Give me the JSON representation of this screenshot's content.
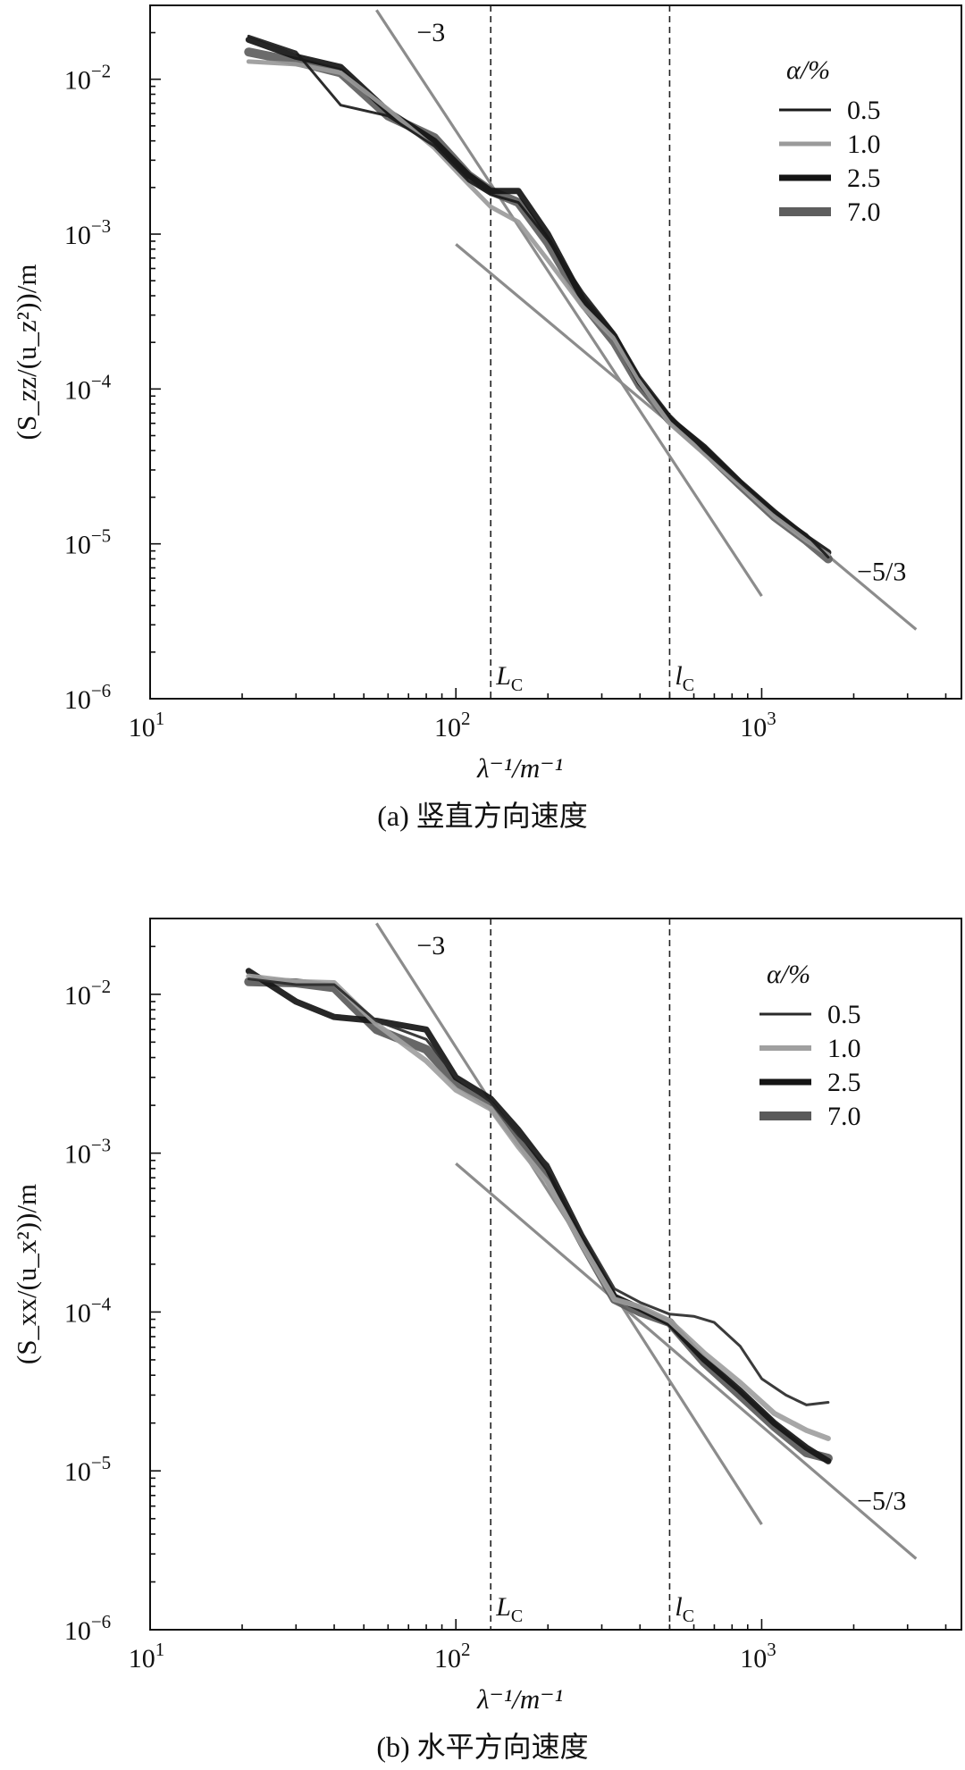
{
  "chart_data": [
    {
      "type": "line",
      "caption": "(a) 竖直方向速度",
      "ylabel": "(S_zz/(u_z²))/m",
      "xlabel": "λ⁻¹/m⁻¹",
      "x_scale": "log",
      "y_scale": "log",
      "xlim": [
        10,
        4500
      ],
      "ylim": [
        1e-06,
        0.03
      ],
      "x_ticks": [
        {
          "base": "10",
          "exp": "1"
        },
        {
          "base": "10",
          "exp": "2"
        },
        {
          "base": "10",
          "exp": "3"
        }
      ],
      "y_ticks": [
        {
          "base": "10",
          "exp": "−6"
        },
        {
          "base": "10",
          "exp": "−5"
        },
        {
          "base": "10",
          "exp": "−4"
        },
        {
          "base": "10",
          "exp": "−3"
        },
        {
          "base": "10",
          "exp": "−2"
        }
      ],
      "legend_title": "α/%",
      "legend_position": "top-right",
      "vlines": [
        {
          "x": 130,
          "label": "L",
          "sub": "C"
        },
        {
          "x": 500,
          "label": "l",
          "sub": "C"
        }
      ],
      "reference_lines": [
        {
          "label": "−3",
          "slope": -3,
          "points": [
            [
              55,
              0.028
            ],
            [
              1000,
              4.6e-06
            ]
          ],
          "color": "#8c8c8c"
        },
        {
          "label": "−5/3",
          "slope": -1.667,
          "points": [
            [
              100,
              0.00086
            ],
            [
              3200,
              2.8e-06
            ]
          ],
          "color": "#8c8c8c"
        }
      ],
      "series": [
        {
          "name": "0.5",
          "color": "#1a1a1a",
          "width": 3,
          "points": [
            [
              21,
              0.019
            ],
            [
              30,
              0.015
            ],
            [
              42,
              0.0068
            ],
            [
              60,
              0.0058
            ],
            [
              85,
              0.0037
            ],
            [
              110,
              0.0022
            ],
            [
              130,
              0.0018
            ],
            [
              160,
              0.0016
            ],
            [
              200,
              0.00092
            ],
            [
              260,
              0.00042
            ],
            [
              330,
              0.00023
            ],
            [
              400,
              0.00012
            ],
            [
              500,
              6.8e-05
            ],
            [
              650,
              4e-05
            ],
            [
              850,
              2.5e-05
            ],
            [
              1100,
              1.6e-05
            ],
            [
              1400,
              1.15e-05
            ],
            [
              1650,
              8.2e-06
            ]
          ]
        },
        {
          "name": "1.0",
          "color": "#9a9a9a",
          "width": 5,
          "points": [
            [
              21,
              0.013
            ],
            [
              30,
              0.0125
            ],
            [
              42,
              0.011
            ],
            [
              60,
              0.0064
            ],
            [
              85,
              0.0036
            ],
            [
              110,
              0.0021
            ],
            [
              130,
              0.0015
            ],
            [
              160,
              0.0012
            ],
            [
              200,
              0.00068
            ],
            [
              260,
              0.00034
            ],
            [
              330,
              0.00021
            ],
            [
              400,
              0.00011
            ],
            [
              500,
              6e-05
            ],
            [
              650,
              3.8e-05
            ],
            [
              850,
              2.4e-05
            ],
            [
              1100,
              1.5e-05
            ],
            [
              1400,
              1.05e-05
            ],
            [
              1650,
              8.5e-06
            ]
          ]
        },
        {
          "name": "2.5",
          "color": "#141414",
          "width": 7,
          "points": [
            [
              21,
              0.018
            ],
            [
              30,
              0.014
            ],
            [
              42,
              0.012
            ],
            [
              60,
              0.0062
            ],
            [
              85,
              0.004
            ],
            [
              110,
              0.0024
            ],
            [
              130,
              0.0019
            ],
            [
              160,
              0.0019
            ],
            [
              200,
              0.001
            ],
            [
              260,
              0.00038
            ],
            [
              330,
              0.00022
            ],
            [
              400,
              0.00011
            ],
            [
              500,
              6.4e-05
            ],
            [
              650,
              4.2e-05
            ],
            [
              850,
              2.5e-05
            ],
            [
              1100,
              1.6e-05
            ],
            [
              1400,
              1.1e-05
            ],
            [
              1650,
              8.8e-06
            ]
          ]
        },
        {
          "name": "7.0",
          "color": "#5e5e5e",
          "width": 10,
          "points": [
            [
              21,
              0.015
            ],
            [
              30,
              0.013
            ],
            [
              42,
              0.011
            ],
            [
              60,
              0.0058
            ],
            [
              85,
              0.0042
            ],
            [
              110,
              0.0024
            ],
            [
              130,
              0.0019
            ],
            [
              160,
              0.0016
            ],
            [
              200,
              0.00088
            ],
            [
              260,
              0.00036
            ],
            [
              330,
              0.0002
            ],
            [
              400,
              0.000105
            ],
            [
              500,
              6.3e-05
            ],
            [
              650,
              4e-05
            ],
            [
              850,
              2.4e-05
            ],
            [
              1100,
              1.5e-05
            ],
            [
              1400,
              1.05e-05
            ],
            [
              1650,
              8e-06
            ]
          ]
        }
      ]
    },
    {
      "type": "line",
      "caption": "(b) 水平方向速度",
      "ylabel": "(S_xx/(u_x²))/m",
      "xlabel": "λ⁻¹/m⁻¹",
      "x_scale": "log",
      "y_scale": "log",
      "xlim": [
        10,
        4500
      ],
      "ylim": [
        1e-06,
        0.03
      ],
      "x_ticks": [
        {
          "base": "10",
          "exp": "1"
        },
        {
          "base": "10",
          "exp": "2"
        },
        {
          "base": "10",
          "exp": "3"
        }
      ],
      "y_ticks": [
        {
          "base": "10",
          "exp": "−6"
        },
        {
          "base": "10",
          "exp": "−5"
        },
        {
          "base": "10",
          "exp": "−4"
        },
        {
          "base": "10",
          "exp": "−3"
        },
        {
          "base": "10",
          "exp": "−2"
        }
      ],
      "legend_title": "α/%",
      "legend_position": "top-right",
      "vlines": [
        {
          "x": 130,
          "label": "L",
          "sub": "C"
        },
        {
          "x": 500,
          "label": "l",
          "sub": "C"
        }
      ],
      "reference_lines": [
        {
          "label": "−3",
          "slope": -3,
          "points": [
            [
              55,
              0.028
            ],
            [
              1000,
              4.6e-06
            ]
          ],
          "color": "#8c8c8c"
        },
        {
          "label": "−5/3",
          "slope": -1.667,
          "points": [
            [
              100,
              0.00086
            ],
            [
              3200,
              2.8e-06
            ]
          ],
          "color": "#8c8c8c"
        }
      ],
      "series": [
        {
          "name": "0.5",
          "color": "#2a2a2a",
          "width": 3,
          "points": [
            [
              21,
              0.0125
            ],
            [
              30,
              0.0115
            ],
            [
              40,
              0.0115
            ],
            [
              55,
              0.0068
            ],
            [
              80,
              0.0052
            ],
            [
              100,
              0.003
            ],
            [
              130,
              0.0021
            ],
            [
              160,
              0.0013
            ],
            [
              200,
              0.00085
            ],
            [
              260,
              0.00031
            ],
            [
              330,
              0.00014
            ],
            [
              400,
              0.000115
            ],
            [
              500,
              9.7e-05
            ],
            [
              600,
              9.4e-05
            ],
            [
              700,
              8.6e-05
            ],
            [
              850,
              6.1e-05
            ],
            [
              1000,
              3.8e-05
            ],
            [
              1200,
              3e-05
            ],
            [
              1400,
              2.6e-05
            ],
            [
              1650,
              2.7e-05
            ]
          ]
        },
        {
          "name": "1.0",
          "color": "#a0a0a0",
          "width": 6,
          "points": [
            [
              21,
              0.013
            ],
            [
              30,
              0.012
            ],
            [
              40,
              0.0118
            ],
            [
              55,
              0.0065
            ],
            [
              80,
              0.0038
            ],
            [
              100,
              0.0025
            ],
            [
              130,
              0.0019
            ],
            [
              160,
              0.0011
            ],
            [
              200,
              0.00065
            ],
            [
              260,
              0.00026
            ],
            [
              330,
              0.00012
            ],
            [
              400,
              0.000108
            ],
            [
              500,
              8.8e-05
            ],
            [
              650,
              5.5e-05
            ],
            [
              850,
              3.6e-05
            ],
            [
              1100,
              2.3e-05
            ],
            [
              1400,
              1.8e-05
            ],
            [
              1650,
              1.6e-05
            ]
          ]
        },
        {
          "name": "2.5",
          "color": "#151515",
          "width": 7,
          "points": [
            [
              21,
              0.014
            ],
            [
              30,
              0.009
            ],
            [
              40,
              0.0072
            ],
            [
              55,
              0.0068
            ],
            [
              80,
              0.006
            ],
            [
              100,
              0.003
            ],
            [
              130,
              0.0022
            ],
            [
              160,
              0.0014
            ],
            [
              200,
              0.0008
            ],
            [
              260,
              0.00029
            ],
            [
              330,
              0.000125
            ],
            [
              400,
              0.000105
            ],
            [
              500,
              8.5e-05
            ],
            [
              650,
              5e-05
            ],
            [
              850,
              3.2e-05
            ],
            [
              1100,
              2e-05
            ],
            [
              1400,
              1.4e-05
            ],
            [
              1650,
              1.15e-05
            ]
          ]
        },
        {
          "name": "7.0",
          "color": "#5a5a5a",
          "width": 10,
          "points": [
            [
              21,
              0.012
            ],
            [
              30,
              0.0118
            ],
            [
              40,
              0.011
            ],
            [
              55,
              0.006
            ],
            [
              80,
              0.0045
            ],
            [
              100,
              0.0028
            ],
            [
              130,
              0.002
            ],
            [
              160,
              0.0012
            ],
            [
              200,
              0.0007
            ],
            [
              260,
              0.00027
            ],
            [
              330,
              0.00012
            ],
            [
              400,
              0.0001
            ],
            [
              500,
              8.6e-05
            ],
            [
              650,
              4.8e-05
            ],
            [
              850,
              3e-05
            ],
            [
              1100,
              1.9e-05
            ],
            [
              1400,
              1.3e-05
            ],
            [
              1650,
              1.2e-05
            ]
          ]
        }
      ]
    }
  ]
}
